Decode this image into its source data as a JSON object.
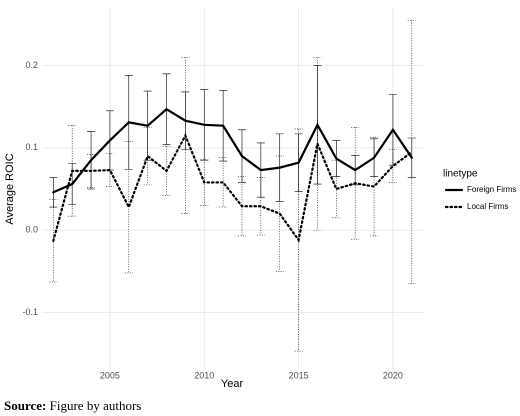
{
  "chart_data": {
    "type": "line",
    "x_label": "Year",
    "y_label": "Average ROIC",
    "x": [
      2002,
      2003,
      2004,
      2005,
      2006,
      2007,
      2008,
      2009,
      2010,
      2011,
      2012,
      2013,
      2014,
      2015,
      2016,
      2017,
      2018,
      2019,
      2020,
      2021
    ],
    "series": [
      {
        "name": "Foreign Firms",
        "color": "#000000",
        "dash": "solid",
        "values": [
          0.046,
          0.056,
          0.085,
          0.109,
          0.131,
          0.127,
          0.147,
          0.133,
          0.128,
          0.127,
          0.09,
          0.073,
          0.076,
          0.082,
          0.128,
          0.087,
          0.073,
          0.088,
          0.122,
          0.088
        ],
        "errors": [
          0.018,
          0.025,
          0.035,
          0.036,
          0.057,
          0.042,
          0.043,
          0.035,
          0.043,
          0.043,
          0.032,
          0.033,
          0.041,
          0.035,
          0.072,
          0.022,
          0.018,
          0.023,
          0.043,
          0.024
        ]
      },
      {
        "name": "Local Firms",
        "color": "#000000",
        "dash": "dotted",
        "values": [
          -0.013,
          0.072,
          0.072,
          0.073,
          0.028,
          0.09,
          0.072,
          0.115,
          0.058,
          0.058,
          0.029,
          0.029,
          0.02,
          -0.012,
          0.105,
          0.05,
          0.057,
          0.053,
          0.078,
          0.095
        ],
        "errors": [
          0.05,
          0.055,
          0.02,
          0.02,
          0.08,
          0.035,
          0.03,
          0.095,
          0.028,
          0.03,
          0.036,
          0.035,
          0.07,
          0.135,
          0.105,
          0.035,
          0.068,
          0.06,
          0.02,
          0.16
        ]
      }
    ],
    "xlim": [
      2001.4,
      2021.7
    ],
    "ylim": [
      -0.17,
      0.27
    ],
    "xticks": [
      2005,
      2010,
      2015,
      2020
    ],
    "yticks": [
      -0.1,
      {
        "value": 0,
        "label": "0.0"
      },
      0.1,
      0.2
    ],
    "grid": true,
    "legend_title": "linetype",
    "legend_position": "right",
    "caption_label": "Source:",
    "caption_text": "Figure by authors"
  }
}
